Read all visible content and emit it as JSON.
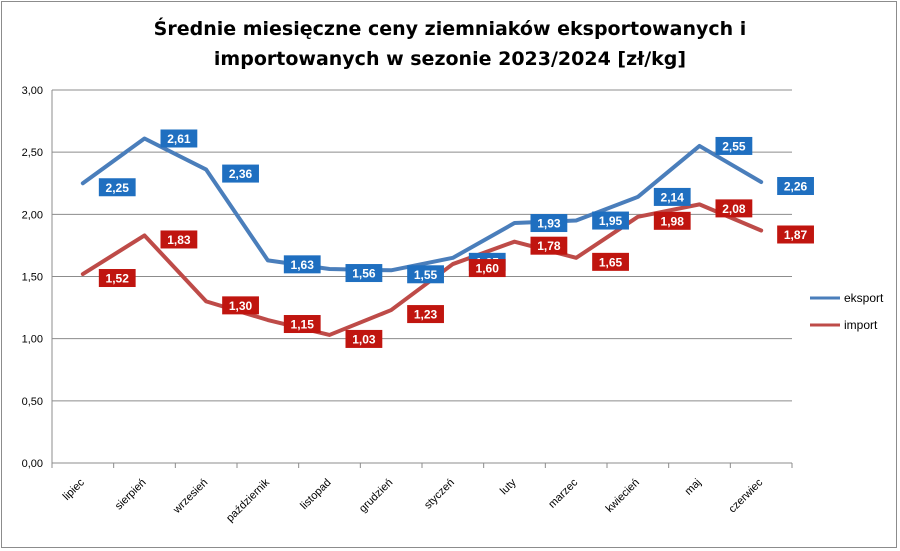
{
  "chart_data": {
    "type": "line",
    "title_line1": "Średnie miesięczne ceny ziemniaków eksportowanych i",
    "title_line2": "importowanych w sezonie 2023/2024  [zł/kg]",
    "categories": [
      "lipiec",
      "sierpień",
      "wrzesień",
      "październik",
      "listopad",
      "grudzień",
      "styczeń",
      "luty",
      "marzec",
      "kwiecień",
      "maj",
      "czerwiec"
    ],
    "series": [
      {
        "name": "eksport",
        "color": "#4a7ebb",
        "label_bg": "#1f6fc0",
        "values": [
          2.25,
          2.61,
          2.36,
          1.63,
          1.56,
          1.55,
          1.65,
          1.93,
          1.95,
          2.14,
          2.55,
          2.26
        ]
      },
      {
        "name": "import",
        "color": "#be4b48",
        "label_bg": "#c0150f",
        "values": [
          1.52,
          1.83,
          1.3,
          1.15,
          1.03,
          1.23,
          1.6,
          1.78,
          1.65,
          1.98,
          2.08,
          1.87
        ]
      }
    ],
    "ylim": [
      0,
      3
    ],
    "yticks": [
      "0,00",
      "0,50",
      "1,00",
      "1,50",
      "2,00",
      "2,50",
      "3,00"
    ],
    "grid": true,
    "legend": "right"
  }
}
